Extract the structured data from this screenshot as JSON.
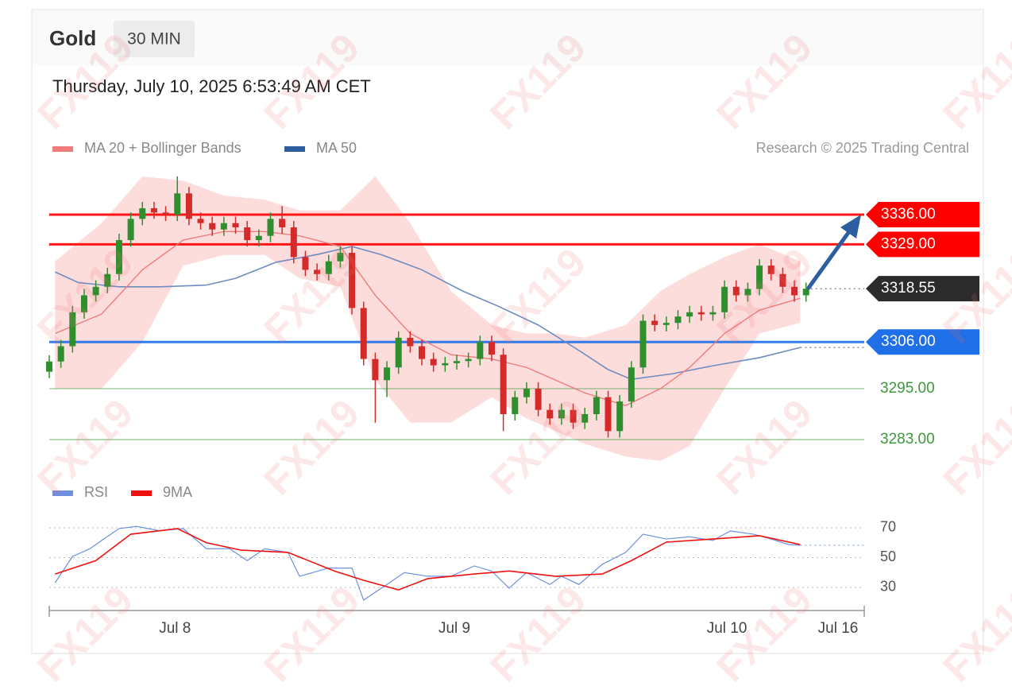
{
  "header": {
    "instrument": "Gold",
    "interval": "30 MIN",
    "timestamp": "Thursday, July 10, 2025 6:53:49 AM CET",
    "watermark": "FX119"
  },
  "chart_data": [
    {
      "type": "candlestick",
      "credit": "Research © 2025 Trading Central",
      "up_color": "#2f8f2f",
      "down_color": "#d42a2a",
      "xlim": [
        0,
        140
      ],
      "ylim": [
        3276,
        3346
      ],
      "x": [
        0,
        2,
        4,
        6,
        8,
        10,
        12,
        14,
        16,
        18,
        20,
        22,
        24,
        26,
        28,
        30,
        32,
        34,
        36,
        38,
        40,
        42,
        44,
        46,
        48,
        50,
        52,
        54,
        56,
        58,
        60,
        62,
        64,
        66,
        68,
        70,
        72,
        74,
        76,
        78,
        80,
        82,
        84,
        86,
        88,
        90,
        92,
        94,
        96,
        98,
        100,
        102,
        104,
        106,
        108,
        110,
        112,
        114,
        116,
        118,
        120,
        122,
        124,
        126,
        128,
        130
      ],
      "open": [
        3299,
        3301.4,
        3305,
        3313,
        3317,
        3319,
        3322,
        3330,
        3335,
        3337.5,
        3336.5,
        3336,
        3341,
        3335,
        3334,
        3332.5,
        3334,
        3333,
        3330,
        3331,
        3335,
        3333,
        3326,
        3323,
        3322,
        3325,
        3327,
        3314,
        3302,
        3297,
        3300,
        3307,
        3305,
        3302,
        3300.5,
        3301,
        3301.5,
        3302,
        3306,
        3303,
        3289,
        3293,
        3295,
        3290,
        3288,
        3290,
        3287,
        3289,
        3293,
        3285,
        3292,
        3300,
        3311,
        3310,
        3310.5,
        3312,
        3313,
        3312.5,
        3313,
        3319,
        3317,
        3318.5,
        3324,
        3322,
        3319,
        3317
      ],
      "high": [
        3302.9,
        3306.5,
        3314.5,
        3318.5,
        3320.5,
        3323.5,
        3331.5,
        3336.5,
        3339,
        3339,
        3338,
        3345,
        3342.5,
        3336.5,
        3335.5,
        3335.5,
        3335.5,
        3334.5,
        3332.5,
        3336.5,
        3338,
        3334.5,
        3327.5,
        3324.5,
        3326.5,
        3328.5,
        3328.5,
        3315.5,
        3303.5,
        3301.5,
        3308.5,
        3308.5,
        3306.5,
        3303.5,
        3302.5,
        3303,
        3303.5,
        3307.5,
        3307.5,
        3304.5,
        3294.5,
        3296.5,
        3296.5,
        3291.5,
        3291.5,
        3291.5,
        3290.5,
        3294.5,
        3294.5,
        3293.5,
        3301.5,
        3312.5,
        3312.5,
        3312,
        3313.5,
        3314.5,
        3314.5,
        3314.5,
        3320.5,
        3320.5,
        3320,
        3325.5,
        3325.5,
        3323.5,
        3320.5,
        3320
      ],
      "low": [
        3297.5,
        3299.9,
        3303.5,
        3311.5,
        3315.5,
        3317.5,
        3320.5,
        3328.5,
        3333.5,
        3335,
        3334.5,
        3334.5,
        3333.5,
        3332.5,
        3331,
        3331,
        3331.5,
        3328.5,
        3328.5,
        3329.5,
        3331.5,
        3324.5,
        3321.5,
        3320.5,
        3320.5,
        3323.5,
        3312.5,
        3300.5,
        3287,
        3293,
        3298.5,
        3303.5,
        3300.5,
        3299,
        3299,
        3299.5,
        3300,
        3300.5,
        3301.5,
        3285,
        3287.5,
        3291.5,
        3288.5,
        3286.5,
        3286.5,
        3285.5,
        3285.5,
        3287.5,
        3283.5,
        3283.5,
        3290.5,
        3298.5,
        3308.5,
        3308.5,
        3309,
        3310.5,
        3311,
        3311,
        3311.5,
        3315.5,
        3315.5,
        3317,
        3320.5,
        3317.5,
        3315.5,
        3315.5
      ],
      "close": [
        3301.4,
        3305,
        3313,
        3317,
        3319,
        3322,
        3330,
        3335,
        3337.5,
        3336.5,
        3336,
        3341,
        3335,
        3334,
        3332.5,
        3334,
        3333,
        3330,
        3331,
        3335,
        3333,
        3326,
        3323,
        3322,
        3325,
        3327,
        3314,
        3302,
        3297,
        3300,
        3307,
        3305,
        3302,
        3300.5,
        3301,
        3301.5,
        3302,
        3306,
        3303,
        3289,
        3293,
        3295,
        3290,
        3288,
        3290,
        3287,
        3289,
        3293,
        3285,
        3292,
        3300,
        3311,
        3310,
        3310.5,
        3312,
        3313,
        3312.5,
        3313,
        3319,
        3317,
        3318.5,
        3324,
        3322,
        3319,
        3317,
        3318.55
      ],
      "series": [
        {
          "name": "MA 20 + Bollinger Bands",
          "color": "#f07c7c",
          "band_color": "#fddcdc",
          "x": [
            1,
            9,
            16,
            23,
            30,
            37,
            43,
            50,
            56,
            62,
            69,
            76,
            82,
            87,
            92,
            99,
            105,
            110,
            116,
            122,
            129
          ],
          "values": [
            3308,
            3312.6,
            3323,
            3330,
            3332,
            3332,
            3331,
            3328.5,
            3317,
            3308,
            3303,
            3302,
            3300,
            3297,
            3294,
            3291,
            3295,
            3300,
            3308,
            3313.5,
            3316.3
          ],
          "upper": [
            3325,
            3334,
            3345,
            3344,
            3340.5,
            3339.5,
            3337,
            3337,
            3345,
            3334,
            3318,
            3310,
            3308,
            3308,
            3307,
            3310,
            3318,
            3322,
            3326,
            3329,
            3325
          ],
          "lower": [
            3295,
            3295,
            3306,
            3324,
            3326.5,
            3326.5,
            3321,
            3319,
            3297,
            3287,
            3287,
            3293,
            3288,
            3285,
            3282,
            3279,
            3278,
            3281.5,
            3295,
            3308,
            3310.5
          ]
        },
        {
          "name": "MA 50",
          "color": "#2d5fa0",
          "line_color": "#6f8cc0",
          "x": [
            1,
            5,
            12,
            19,
            27,
            32,
            39,
            46,
            52,
            57,
            64,
            71,
            77,
            84,
            91,
            96,
            100,
            107,
            114,
            122,
            129
          ],
          "values": [
            3322.5,
            3320,
            3319,
            3319,
            3319.4,
            3321,
            3324.8,
            3326.6,
            3328.5,
            3326.6,
            3323,
            3318,
            3314.5,
            3310,
            3304,
            3299.5,
            3297.2,
            3298.5,
            3300.4,
            3302.3,
            3304.7
          ]
        }
      ],
      "levels": [
        {
          "value": 3336,
          "label": "3336.00",
          "color": "#ff0000",
          "boxed": true
        },
        {
          "value": 3329,
          "label": "3329.00",
          "color": "#ff0000",
          "boxed": true
        },
        {
          "value": 3306,
          "label": "3306.00",
          "color": "#1f6fe8",
          "boxed": true
        },
        {
          "value": 3295,
          "label": "3295.00",
          "color": "#3a9a3a",
          "boxed": false
        },
        {
          "value": 3283,
          "label": "3283.00",
          "color": "#3a9a3a",
          "boxed": false
        }
      ],
      "last_price": 3318.55,
      "last_color": "#2b2b2b"
    },
    {
      "type": "line",
      "xlim": [
        0,
        140
      ],
      "ylim": [
        19,
        83
      ],
      "yticks": [
        30,
        50,
        70
      ],
      "xticks": [
        {
          "value": 21.6,
          "label": "Jul 8"
        },
        {
          "value": 69.6,
          "label": "Jul 9"
        },
        {
          "value": 116.4,
          "label": "Jul 10"
        },
        {
          "value": 135.5,
          "label": "Jul 16"
        }
      ],
      "series": [
        {
          "name": "RSI",
          "color": "#6f8fe0",
          "x": [
            1,
            4,
            7,
            9,
            12,
            15,
            19,
            23,
            27,
            31,
            34,
            37,
            41,
            43,
            48,
            52,
            54,
            58,
            61,
            65,
            69,
            73,
            76,
            79,
            82,
            86,
            88,
            91,
            95,
            99,
            102,
            106,
            110,
            114,
            117,
            121,
            124,
            127,
            129
          ],
          "values": [
            33.2,
            50.8,
            56,
            61.5,
            69.5,
            71,
            68,
            69.5,
            56,
            56,
            48,
            56,
            53.5,
            37.5,
            43,
            43,
            21.5,
            32,
            40,
            37.5,
            37.5,
            44.4,
            41,
            29.5,
            40,
            32,
            37.5,
            32,
            45.5,
            53.5,
            65.7,
            62.5,
            64,
            61.5,
            67.9,
            65.7,
            62.5,
            58.8,
            58.3
          ]
        },
        {
          "name": "9MA",
          "color": "#f01010",
          "x": [
            1,
            8,
            14,
            22,
            27,
            33,
            41,
            49,
            54,
            60,
            65,
            73,
            79,
            87,
            95,
            100,
            106,
            114,
            122,
            129
          ],
          "values": [
            39,
            48,
            65.7,
            69.5,
            60,
            55,
            53.5,
            41,
            34.8,
            28.4,
            35.9,
            39,
            41,
            37.5,
            39,
            48,
            60.4,
            62.5,
            64.7,
            58.8
          ]
        }
      ]
    }
  ]
}
